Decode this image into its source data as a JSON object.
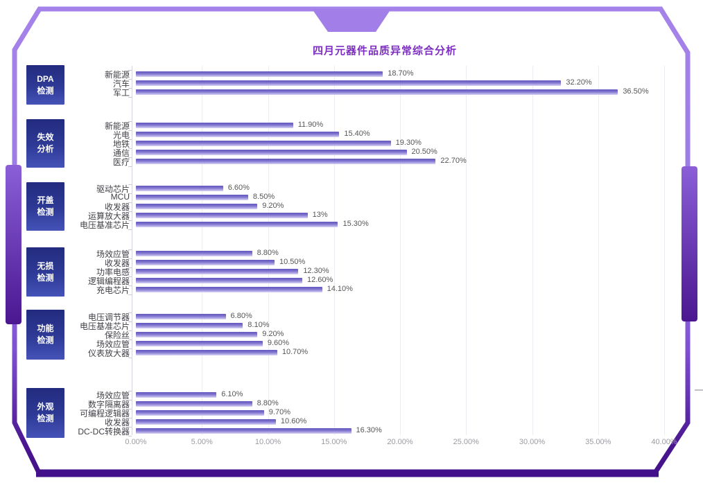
{
  "title": "四月元器件品质异常综合分析",
  "colors": {
    "frame_light_purple": "#a583ea",
    "frame_dark_purple": "#42108b",
    "category_box_blue": "#2e3a96",
    "bar_purple": "#7e72cd",
    "title_purple": "#7d2fc1"
  },
  "chart_data": {
    "type": "bar",
    "orientation": "horizontal",
    "title": "四月元器件品质异常综合分析",
    "xlabel": "",
    "ylabel": "",
    "xlim": [
      0,
      40
    ],
    "grid": true,
    "x_ticks": [
      "0.00%",
      "5.00%",
      "10.00%",
      "15.00%",
      "20.00%",
      "25.00%",
      "30.00%",
      "35.00%",
      "40.00%"
    ],
    "groups": [
      {
        "name": "DPA检测",
        "name_lines": [
          "DPA",
          "检测"
        ],
        "categories": [
          "新能源",
          "汽车",
          "军工"
        ],
        "values": [
          18.7,
          32.2,
          36.5
        ],
        "labels": [
          "18.70%",
          "32.20%",
          "36.50%"
        ]
      },
      {
        "name": "失效分析",
        "name_lines": [
          "失效",
          "分析"
        ],
        "categories": [
          "新能源",
          "光电",
          "地铁",
          "通信",
          "医疗"
        ],
        "values": [
          11.9,
          15.4,
          19.3,
          20.5,
          22.7
        ],
        "labels": [
          "11.90%",
          "15.40%",
          "19.30%",
          "20.50%",
          "22.70%"
        ]
      },
      {
        "name": "开盖检测",
        "name_lines": [
          "开盖",
          "检测"
        ],
        "categories": [
          "驱动芯片",
          "MCU",
          "收发器",
          "运算放大器",
          "电压基准芯片"
        ],
        "values": [
          6.6,
          8.5,
          9.2,
          13,
          15.3
        ],
        "labels": [
          "6.60%",
          "8.50%",
          "9.20%",
          "13%",
          "15.30%"
        ]
      },
      {
        "name": "无损检测",
        "name_lines": [
          "无损",
          "检测"
        ],
        "categories": [
          "场效应管",
          "收发器",
          "功率电感",
          "逻辑编程器",
          "充电芯片"
        ],
        "values": [
          8.8,
          10.5,
          12.3,
          12.6,
          14.1
        ],
        "labels": [
          "8.80%",
          "10.50%",
          "12.30%",
          "12.60%",
          "14.10%"
        ]
      },
      {
        "name": "功能检测",
        "name_lines": [
          "功能",
          "检测"
        ],
        "categories": [
          "电压调节器",
          "电压基准芯片",
          "保险丝",
          "场效应管",
          "仪表放大器"
        ],
        "values": [
          6.8,
          8.1,
          9.2,
          9.6,
          10.7
        ],
        "labels": [
          "6.80%",
          "8.10%",
          "9.20%",
          "9.60%",
          "10.70%"
        ]
      },
      {
        "name": "外观检测",
        "name_lines": [
          "外观",
          "检测"
        ],
        "categories": [
          "场效应管",
          "数字隔离器",
          "可编程逻辑器",
          "收发器",
          "DC-DC转换器"
        ],
        "values": [
          6.1,
          8.8,
          9.7,
          10.6,
          16.3
        ],
        "labels": [
          "6.10%",
          "8.80%",
          "9.70%",
          "10.60%",
          "16.30%"
        ]
      }
    ]
  }
}
